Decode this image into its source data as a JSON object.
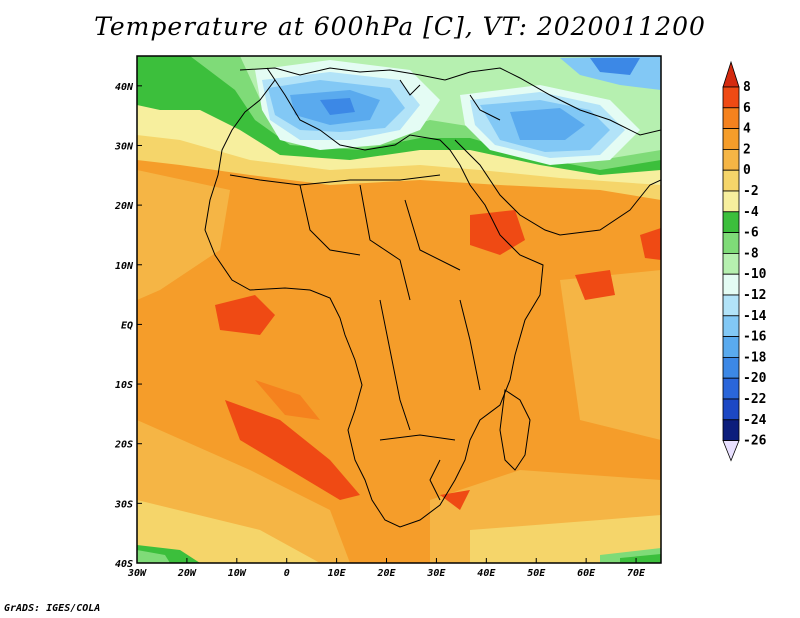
{
  "title": "Temperature at 600hPa [C], VT: 2020011200",
  "footer": "GrADS: IGES/COLA",
  "map": {
    "lon_range": [
      -30,
      75
    ],
    "lat_range": [
      -40,
      45
    ],
    "x_ticks": [
      {
        "lon": -30,
        "label": "30W"
      },
      {
        "lon": -20,
        "label": "20W"
      },
      {
        "lon": -10,
        "label": "10W"
      },
      {
        "lon": 0,
        "label": "0"
      },
      {
        "lon": 10,
        "label": "10E"
      },
      {
        "lon": 20,
        "label": "20E"
      },
      {
        "lon": 30,
        "label": "30E"
      },
      {
        "lon": 40,
        "label": "40E"
      },
      {
        "lon": 50,
        "label": "50E"
      },
      {
        "lon": 60,
        "label": "60E"
      },
      {
        "lon": 70,
        "label": "70E"
      }
    ],
    "y_ticks": [
      {
        "lat": 40,
        "label": "40N"
      },
      {
        "lat": 30,
        "label": "30N"
      },
      {
        "lat": 20,
        "label": "20N"
      },
      {
        "lat": 10,
        "label": "10N"
      },
      {
        "lat": 0,
        "label": "EQ"
      },
      {
        "lat": -10,
        "label": "10S"
      },
      {
        "lat": -20,
        "label": "20S"
      },
      {
        "lat": -30,
        "label": "30S"
      },
      {
        "lat": -40,
        "label": "40S"
      }
    ]
  },
  "colorbar": {
    "labels": [
      "8",
      "6",
      "4",
      "2",
      "0",
      "-2",
      "-4",
      "-6",
      "-8",
      "-10",
      "-12",
      "-14",
      "-16",
      "-18",
      "-20",
      "-22",
      "-24",
      "-26"
    ],
    "colors": {
      "gt8": "#d42a0f",
      "6_8": "#ef4a14",
      "4_6": "#f5821e",
      "2_4": "#f59d2a",
      "0_2": "#f5b545",
      "m2_0": "#f5d56a",
      "m4_m2": "#f7ef9e",
      "m6_m4": "#3cbf3c",
      "m8_m6": "#7fdb78",
      "m10_m8": "#b6f0b0",
      "m12_m10": "#e4fcf4",
      "m14_m12": "#b2e3f8",
      "m16_m14": "#82c8f5",
      "m18_m16": "#5aaaee",
      "m20_m18": "#3c88e6",
      "m22_m20": "#2a66da",
      "m24_m22": "#1c48c4",
      "m26_m24": "#0c1e7c",
      "lt_m26": "#e8e0ff"
    }
  }
}
